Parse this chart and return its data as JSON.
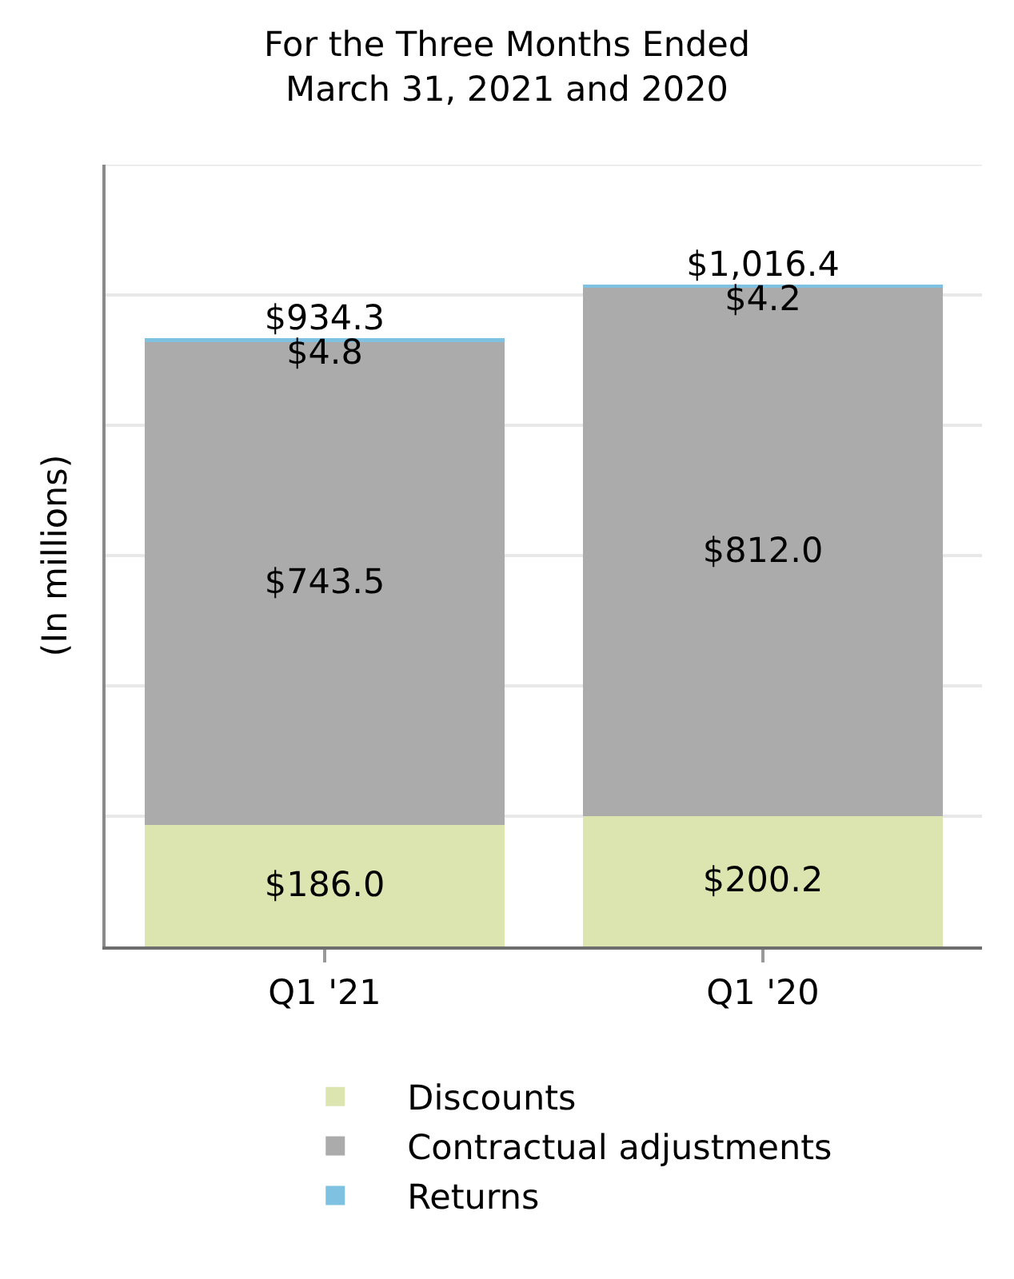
{
  "chart_data": {
    "type": "bar",
    "title": "For the Three Months Ended\nMarch 31, 2021 and 2020",
    "ylabel": "(In millions)",
    "categories": [
      "Q1 '21",
      "Q1 '20"
    ],
    "stacked": true,
    "series": [
      {
        "name": "Discounts",
        "color": "#dce4b0",
        "values": [
          186.0,
          200.2
        ],
        "value_labels": [
          "$186.0",
          "$200.2"
        ]
      },
      {
        "name": "Contractual adjustments",
        "color": "#ababab",
        "values": [
          743.5,
          812.0
        ],
        "value_labels": [
          "$743.5",
          "$812.0"
        ]
      },
      {
        "name": "Returns",
        "color": "#7fc1e0",
        "values": [
          4.8,
          4.2
        ],
        "value_labels": [
          "$4.8",
          "$4.2"
        ]
      }
    ],
    "totals": [
      "$934.3",
      "$1,016.4"
    ],
    "ylim": [
      0,
      1200
    ],
    "yticks": [
      {
        "value": 0,
        "label": null
      },
      {
        "value": 200,
        "label": null
      },
      {
        "value": 400,
        "label": null
      },
      {
        "value": 600,
        "label": null
      },
      {
        "value": 800,
        "label": null
      },
      {
        "value": 1000,
        "label": null
      },
      {
        "value": 1200,
        "label": null
      }
    ],
    "grid": "y",
    "legend": "bottom",
    "tick_labels": "x"
  }
}
